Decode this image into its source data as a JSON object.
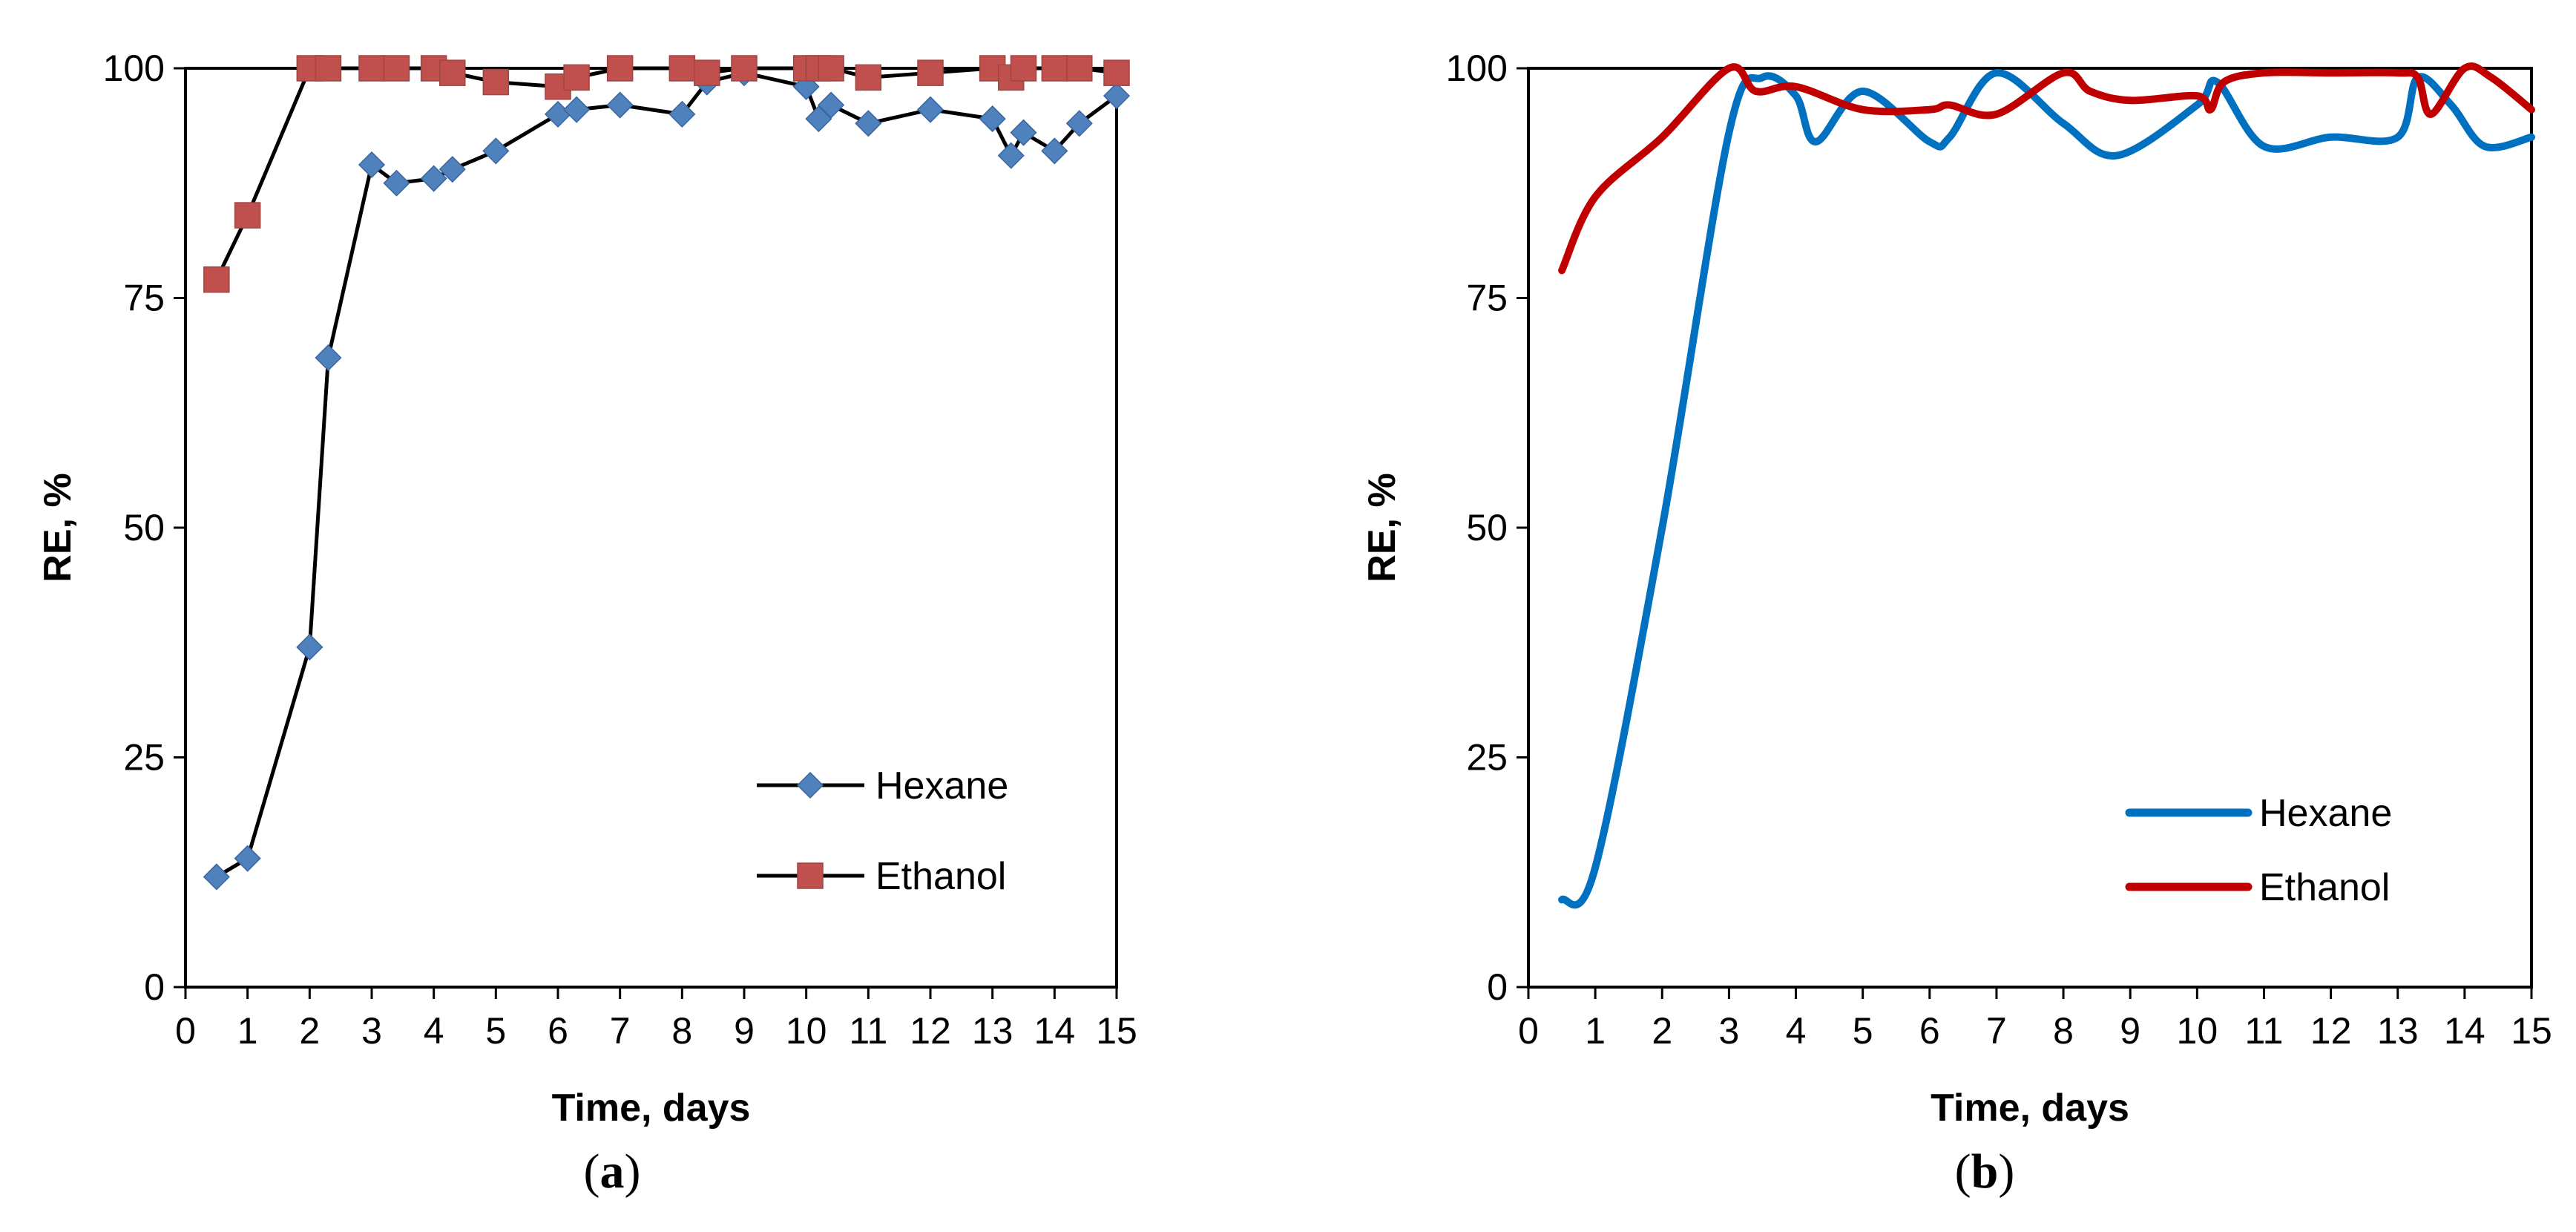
{
  "chart_data": [
    {
      "panel_label": "(a)",
      "panel_letter": "a",
      "type": "line",
      "marker_style": "markers",
      "xlabel": "Time, days",
      "ylabel": "RE, %",
      "xlim": [
        0,
        15
      ],
      "ylim": [
        0,
        100
      ],
      "xticks": [
        0,
        1,
        2,
        3,
        4,
        5,
        6,
        7,
        8,
        9,
        10,
        11,
        12,
        13,
        14,
        15
      ],
      "yticks": [
        0,
        25,
        50,
        75,
        100
      ],
      "legend_position": "bottom-right",
      "series": [
        {
          "name": "Hexane",
          "color": "#4f81bd",
          "line_color": "#000000",
          "marker": "diamond",
          "x": [
            0.5,
            1,
            2,
            2.3,
            3,
            3.4,
            4,
            4.3,
            5,
            6,
            6.3,
            7,
            8,
            8.4,
            9,
            10,
            10.2,
            10.4,
            11,
            12,
            13,
            13.3,
            13.5,
            14,
            14.4,
            15
          ],
          "y": [
            12,
            14,
            37,
            68.5,
            89.5,
            87.5,
            88,
            89,
            91,
            95,
            95.5,
            96,
            95,
            98.5,
            99.5,
            98,
            94.5,
            96,
            94,
            95.5,
            94.5,
            90.5,
            93,
            91,
            94,
            97
          ]
        },
        {
          "name": "Ethanol",
          "color": "#c0504d",
          "line_color": "#000000",
          "marker": "square",
          "x": [
            0.5,
            1,
            2,
            2.3,
            3,
            3.4,
            4,
            4.3,
            5,
            6,
            6.3,
            7,
            8,
            8.4,
            9,
            10,
            10.2,
            10.4,
            11,
            12,
            13,
            13.3,
            13.5,
            14,
            14.4,
            15
          ],
          "y": [
            77,
            84,
            100,
            100,
            100,
            100,
            100,
            99.5,
            98.5,
            98,
            99,
            100,
            100,
            99.5,
            100,
            100,
            100,
            100,
            99,
            99.5,
            100,
            99,
            100,
            100,
            100,
            99.5
          ]
        }
      ]
    },
    {
      "panel_label": "(b)",
      "panel_letter": "b",
      "type": "line",
      "marker_style": "smooth",
      "xlabel": "Time, days",
      "ylabel": "RE, %",
      "xlim": [
        0,
        15
      ],
      "ylim": [
        0,
        100
      ],
      "xticks": [
        0,
        1,
        2,
        3,
        4,
        5,
        6,
        7,
        8,
        9,
        10,
        11,
        12,
        13,
        14,
        15
      ],
      "yticks": [
        0,
        25,
        50,
        75,
        100
      ],
      "legend_position": "bottom-right",
      "series": [
        {
          "name": "Hexane",
          "color": "#0070c0",
          "marker": "none",
          "x": [
            0.5,
            1,
            2,
            3,
            3.5,
            4,
            4.3,
            5,
            6,
            6.3,
            7,
            8,
            8.8,
            10,
            10.3,
            11,
            12,
            13,
            13.3,
            13.8,
            14.3,
            15
          ],
          "y": [
            9.5,
            13,
            50,
            93,
            99,
            97,
            92,
            97.5,
            92,
            92.5,
            99.5,
            94,
            90.5,
            96,
            98.5,
            91.5,
            92.5,
            92.5,
            99,
            96,
            91.5,
            92.5
          ]
        },
        {
          "name": "Ethanol",
          "color": "#c00000",
          "marker": "none",
          "x": [
            0.5,
            1,
            2,
            3,
            3.4,
            4,
            5,
            6,
            6.3,
            7,
            8,
            8.4,
            9,
            10,
            10.2,
            10.4,
            11,
            12,
            13,
            13.3,
            13.5,
            14,
            14.4,
            15
          ],
          "y": [
            78,
            86,
            92.5,
            100,
            97.5,
            98,
            95.5,
            95.5,
            96,
            95,
            99.5,
            97.5,
            96.5,
            97,
            95.5,
            98.5,
            99.5,
            99.5,
            99.5,
            99,
            95,
            100,
            99,
            95.5
          ]
        }
      ]
    }
  ]
}
